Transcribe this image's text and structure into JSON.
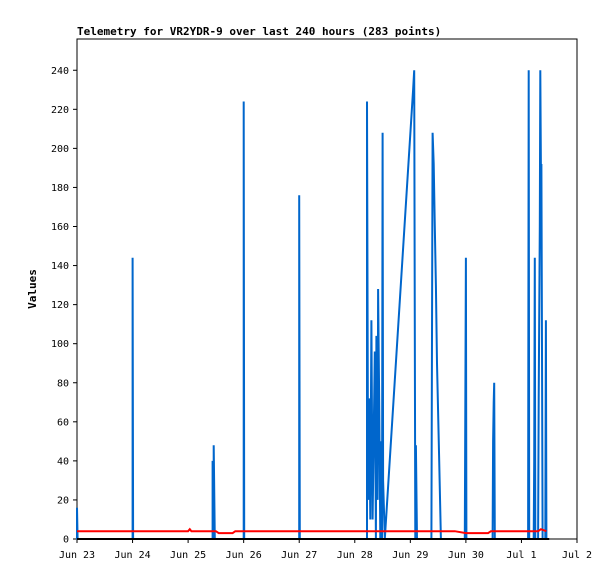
{
  "chart_data": {
    "type": "line",
    "title": "Telemetry for VR2YDR-9 over last 240 hours (283 points)",
    "xlabel": "",
    "ylabel": "Values",
    "xlim": [
      "Jun 23",
      "Jul 2"
    ],
    "ylim": [
      0,
      256
    ],
    "x_ticks": [
      "Jun 23",
      "Jun 24",
      "Jun 25",
      "Jun 26",
      "Jun 27",
      "Jun 28",
      "Jun 29",
      "Jun 30",
      "Jul 1",
      "Jul 2"
    ],
    "y_ticks": [
      0,
      20,
      40,
      60,
      80,
      100,
      120,
      140,
      160,
      180,
      200,
      220,
      240
    ],
    "grid": false,
    "legend": "none",
    "series": [
      {
        "color": "#0066cc",
        "points": [
          [
            0.0,
            0
          ],
          [
            0.0,
            16
          ],
          [
            0.01,
            0
          ],
          [
            1.0,
            0
          ],
          [
            1.0,
            144
          ],
          [
            1.01,
            0
          ],
          [
            2.44,
            0
          ],
          [
            2.44,
            40
          ],
          [
            2.46,
            0
          ],
          [
            2.46,
            48
          ],
          [
            2.48,
            0
          ],
          [
            3.0,
            0
          ],
          [
            3.0,
            224
          ],
          [
            3.01,
            0
          ],
          [
            4.0,
            0
          ],
          [
            4.0,
            176
          ],
          [
            4.01,
            0
          ],
          [
            5.22,
            0
          ],
          [
            5.22,
            224
          ],
          [
            5.24,
            20
          ],
          [
            5.26,
            72
          ],
          [
            5.28,
            10
          ],
          [
            5.3,
            112
          ],
          [
            5.32,
            10
          ],
          [
            5.36,
            96
          ],
          [
            5.38,
            0
          ],
          [
            5.39,
            104
          ],
          [
            5.41,
            20
          ],
          [
            5.42,
            128
          ],
          [
            5.44,
            70
          ],
          [
            5.46,
            0
          ],
          [
            5.47,
            50
          ],
          [
            5.49,
            0
          ],
          [
            5.5,
            208
          ],
          [
            5.51,
            30
          ],
          [
            5.54,
            0
          ],
          [
            6.05,
            230
          ],
          [
            6.07,
            240
          ],
          [
            6.09,
            0
          ],
          [
            6.1,
            48
          ],
          [
            6.12,
            0
          ],
          [
            6.38,
            0
          ],
          [
            6.4,
            208
          ],
          [
            6.42,
            192
          ],
          [
            6.44,
            160
          ],
          [
            6.46,
            130
          ],
          [
            6.48,
            90
          ],
          [
            6.52,
            40
          ],
          [
            6.55,
            0
          ],
          [
            6.98,
            0
          ],
          [
            7.0,
            144
          ],
          [
            7.01,
            0
          ],
          [
            7.48,
            0
          ],
          [
            7.49,
            50
          ],
          [
            7.5,
            70
          ],
          [
            7.51,
            80
          ],
          [
            7.52,
            0
          ],
          [
            8.12,
            0
          ],
          [
            8.13,
            240
          ],
          [
            8.14,
            0
          ],
          [
            8.22,
            0
          ],
          [
            8.23,
            40
          ],
          [
            8.24,
            144
          ],
          [
            8.25,
            0
          ],
          [
            8.3,
            0
          ],
          [
            8.31,
            72
          ],
          [
            8.33,
            160
          ],
          [
            8.34,
            240
          ],
          [
            8.35,
            190
          ],
          [
            8.36,
            192
          ],
          [
            8.38,
            0
          ],
          [
            8.43,
            0
          ],
          [
            8.44,
            112
          ],
          [
            8.45,
            0
          ]
        ]
      },
      {
        "color": "#ff0000",
        "points": [
          [
            0.0,
            4
          ],
          [
            2.0,
            4
          ],
          [
            2.03,
            5
          ],
          [
            2.06,
            4
          ],
          [
            2.5,
            4
          ],
          [
            2.55,
            3
          ],
          [
            2.8,
            3
          ],
          [
            2.85,
            4
          ],
          [
            5.5,
            4
          ],
          [
            6.8,
            4
          ],
          [
            7.0,
            3
          ],
          [
            7.4,
            3
          ],
          [
            7.45,
            4
          ],
          [
            8.3,
            4
          ],
          [
            8.35,
            5
          ],
          [
            8.45,
            4
          ]
        ]
      },
      {
        "color": "#000000",
        "points": [
          [
            0.0,
            0
          ],
          [
            8.5,
            0
          ]
        ]
      }
    ]
  }
}
